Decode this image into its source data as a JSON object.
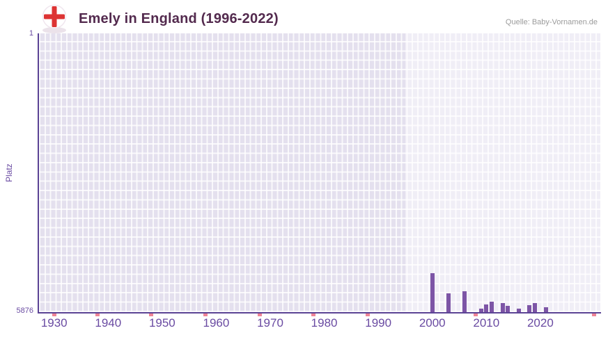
{
  "header": {
    "title": "Emely in England (1996-2022)",
    "source": "Quelle: Baby-Vornamen.de"
  },
  "chart_data": {
    "type": "bar",
    "title": "Emely in England (1996-2022)",
    "xlabel": "",
    "ylabel": "Platz",
    "y_axis": {
      "top_label": "1",
      "bottom_label": "5876",
      "min": 1,
      "max": 5876,
      "inverted": true
    },
    "x_ticks": [
      "1930",
      "1940",
      "1950",
      "1960",
      "1970",
      "1980",
      "1990",
      "2000",
      "2010",
      "2020"
    ],
    "x_range": [
      1927.2,
      2031.1
    ],
    "highlight_band_start_year": 1995,
    "grid": true,
    "legend": "none",
    "bars": [
      {
        "year": 2000,
        "rank": 5050
      },
      {
        "year": 2003,
        "rank": 5480
      },
      {
        "year": 2006,
        "rank": 5440
      },
      {
        "year": 2009,
        "rank": 5800
      },
      {
        "year": 2010,
        "rank": 5720
      },
      {
        "year": 2011,
        "rank": 5650
      },
      {
        "year": 2013,
        "rank": 5690
      },
      {
        "year": 2014,
        "rank": 5750
      },
      {
        "year": 2016,
        "rank": 5800
      },
      {
        "year": 2018,
        "rank": 5730
      },
      {
        "year": 2019,
        "rank": 5690
      },
      {
        "year": 2021,
        "rank": 5780
      }
    ],
    "no_rank_years": [
      1930,
      1938,
      1948,
      1958,
      1968,
      1978,
      1988,
      2008,
      2030
    ],
    "colors": {
      "bar": "#7d55a6",
      "no_rank_mark": "#ee8496",
      "plot_background": "#e4e0ee",
      "highlight_band": "rgba(255,255,255,0.45)",
      "axis_line": "#5b4394",
      "tick_text": "#6a4ba2",
      "title_text": "#532a4e",
      "source_text": "#9b9b9b",
      "flag_red": "#dd3333"
    }
  }
}
